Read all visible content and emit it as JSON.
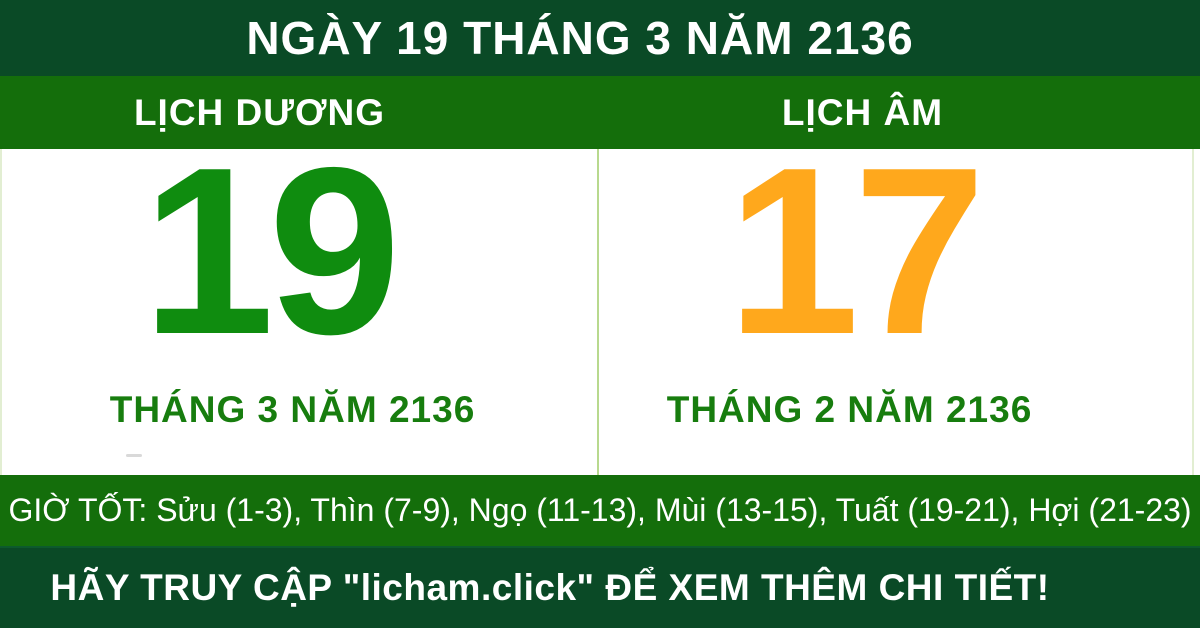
{
  "banner": {
    "title": "NGÀY 19 THÁNG 3 NĂM 2136",
    "panels": [
      {
        "header": "LỊCH DƯƠNG",
        "day": "19",
        "month_line": "THÁNG 3 NĂM 2136"
      },
      {
        "header": "LỊCH ÂM",
        "day": "17",
        "month_line": "THÁNG 2 NĂM 2136"
      }
    ],
    "good_hours": "GIỜ TỐT: Sửu (1-3), Thìn (7-9), Ngọ (11-13), Mùi (13-15), Tuất (19-21), Hợi (21-23)",
    "cta": "HÃY TRUY CẬP \"licham.click\" ĐỂ XEM THÊM CHI TIẾT!",
    "site_name": "licham.click"
  },
  "colors": {
    "dark_green": "#0a4a26",
    "band_green": "#146e0b",
    "digit_green": "#0f8c0f",
    "month_green": "#177d0e",
    "orange": "#ffa81c",
    "divider_green": "#b8d98e",
    "edge_green": "#e2eed2",
    "text_white": "#ffffff"
  }
}
